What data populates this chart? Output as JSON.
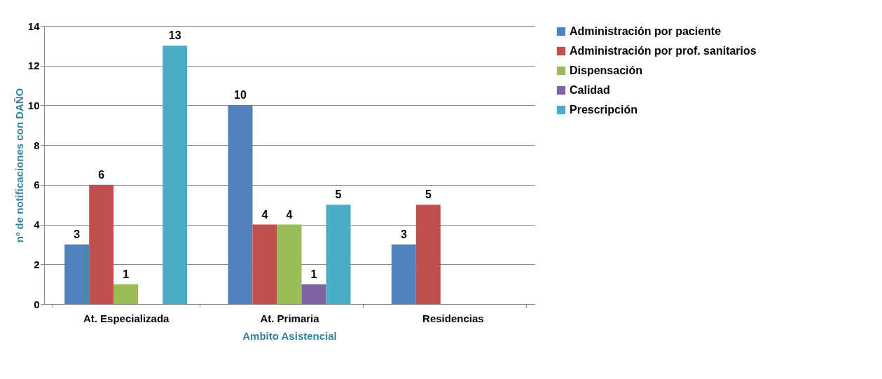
{
  "chart_data": {
    "type": "bar",
    "xlabel": "Ambito Asistencial",
    "ylabel": "nº de notificaciones  con DAÑO",
    "categories": [
      "At. Especializada",
      "At. Primaria",
      "Residencias"
    ],
    "series": [
      {
        "name": "Administración por paciente",
        "color": "#4f81bd",
        "values": [
          3,
          10,
          3
        ]
      },
      {
        "name": "Administración por prof. sanitarios",
        "color": "#c0504d",
        "values": [
          6,
          4,
          5
        ]
      },
      {
        "name": "Dispensación",
        "color": "#9bbb59",
        "values": [
          1,
          4,
          null
        ]
      },
      {
        "name": "Calidad",
        "color": "#8064a2",
        "values": [
          null,
          1,
          null
        ]
      },
      {
        "name": "Prescripción",
        "color": "#4bacc6",
        "values": [
          13,
          5,
          null
        ]
      }
    ],
    "ylim": [
      0,
      14
    ],
    "yticks": [
      0,
      2,
      4,
      6,
      8,
      10,
      12,
      14
    ],
    "grid": "y",
    "legend": "right",
    "data_labels": true
  }
}
